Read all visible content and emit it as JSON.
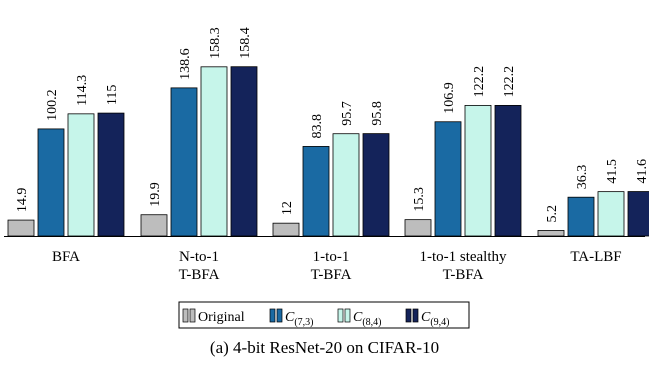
{
  "chart_data": {
    "type": "bar",
    "categories": [
      [
        "BFA"
      ],
      [
        "N-to-1",
        "T-BFA"
      ],
      [
        "1-to-1",
        "T-BFA"
      ],
      [
        "1-to-1 stealthy",
        "T-BFA"
      ],
      [
        "TA-LBF"
      ]
    ],
    "series": [
      {
        "name": "Original",
        "color": "#bdbdbd",
        "values": [
          14.9,
          19.9,
          12,
          15.3,
          5.2
        ]
      },
      {
        "name": "C(7,3)",
        "color": "#1a6aa3",
        "values": [
          100.2,
          138.6,
          83.8,
          106.9,
          36.3
        ]
      },
      {
        "name": "C(8,4)",
        "color": "#c6f5ea",
        "values": [
          114.3,
          158.3,
          95.7,
          122.2,
          41.5
        ]
      },
      {
        "name": "C(9,4)",
        "color": "#14235a",
        "values": [
          115,
          158.4,
          95.8,
          122.2,
          41.6
        ]
      }
    ],
    "value_labels": [
      [
        "14.9",
        "100.2",
        "114.3",
        "115"
      ],
      [
        "19.9",
        "138.6",
        "158.3",
        "158.4"
      ],
      [
        "12",
        "83.8",
        "95.7",
        "95.8"
      ],
      [
        "15.3",
        "106.9",
        "122.2",
        "122.2"
      ],
      [
        "5.2",
        "36.3",
        "41.5",
        "41.6"
      ]
    ],
    "legend": {
      "position": "bottom-center",
      "entries": [
        {
          "base": "Original",
          "sub": ""
        },
        {
          "base": "C",
          "sub": "(7,3)"
        },
        {
          "base": "C",
          "sub": "(8,4)"
        },
        {
          "base": "C",
          "sub": "(9,4)"
        }
      ]
    },
    "ylim": [
      0,
      160
    ],
    "grid": false,
    "title": "",
    "xlabel": "",
    "ylabel": ""
  },
  "caption": "(a) 4-bit ResNet-20 on CIFAR-10"
}
